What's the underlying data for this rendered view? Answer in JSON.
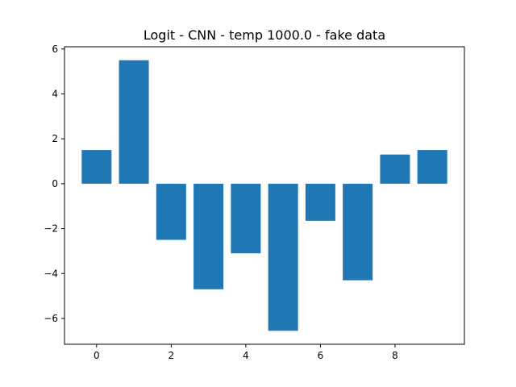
{
  "chart_data": {
    "type": "bar",
    "title": "Logit - CNN - temp 1000.0 - fake data",
    "xlabel": "",
    "ylabel": "",
    "x": [
      0,
      1,
      2,
      3,
      4,
      5,
      6,
      7,
      8,
      9
    ],
    "values": [
      1.5,
      5.5,
      -2.5,
      -4.7,
      -3.1,
      -6.55,
      -1.65,
      -4.3,
      1.3,
      1.5
    ],
    "xlim": [
      -0.86,
      9.86
    ],
    "ylim": [
      -7.15,
      6.1
    ],
    "xticks": [
      0,
      2,
      4,
      6,
      8
    ],
    "xtick_labels": [
      "0",
      "2",
      "4",
      "6",
      "8"
    ],
    "yticks": [
      -6,
      -4,
      -2,
      0,
      2,
      4,
      6
    ],
    "ytick_labels": [
      "−6",
      "−4",
      "−2",
      "0",
      "2",
      "4",
      "6"
    ],
    "bar_color": "#1f77b4",
    "grid": false,
    "legend": false
  }
}
